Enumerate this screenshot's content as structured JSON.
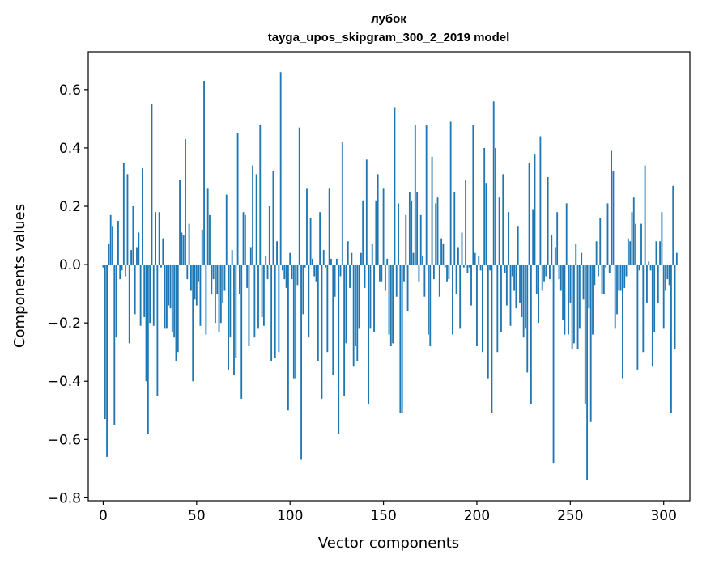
{
  "chart_data": {
    "type": "bar",
    "title": "лубок",
    "subtitle": "tayga_upos_skipgram_300_2_2019 model",
    "xlabel": "Vector components",
    "ylabel": "Components values",
    "xlim": [
      -8,
      314
    ],
    "ylim": [
      -0.81,
      0.73
    ],
    "xticks": [
      0,
      50,
      100,
      150,
      200,
      250,
      300
    ],
    "yticks": [
      -0.8,
      -0.6,
      -0.4,
      -0.2,
      0.0,
      0.2,
      0.4,
      0.6
    ],
    "ytick_labels": [
      "−0.8",
      "−0.6",
      "−0.4",
      "−0.2",
      "0.0",
      "0.2",
      "0.4",
      "0.6"
    ],
    "bar_color": "#1f77b4",
    "values": [
      -0.01,
      -0.53,
      -0.66,
      0.07,
      0.17,
      0.13,
      -0.55,
      -0.25,
      0.15,
      -0.05,
      -0.02,
      0.35,
      -0.04,
      0.31,
      -0.27,
      0.05,
      0.2,
      -0.17,
      0.06,
      0.11,
      -0.21,
      0.33,
      -0.18,
      -0.4,
      -0.58,
      -0.2,
      0.55,
      -0.21,
      0.18,
      -0.45,
      0.18,
      -0.01,
      0.09,
      -0.22,
      -0.22,
      -0.14,
      -0.15,
      -0.23,
      -0.25,
      -0.33,
      -0.3,
      0.29,
      0.11,
      0.1,
      0.43,
      -0.05,
      0.14,
      -0.09,
      -0.4,
      -0.12,
      -0.14,
      -0.06,
      -0.21,
      0.12,
      0.63,
      -0.24,
      0.26,
      0.17,
      -0.1,
      -0.05,
      -0.2,
      -0.1,
      -0.23,
      -0.2,
      -0.13,
      -0.09,
      0.24,
      -0.36,
      -0.25,
      0.05,
      -0.38,
      -0.32,
      0.45,
      -0.1,
      -0.46,
      0.18,
      0.17,
      -0.08,
      -0.28,
      0.06,
      0.34,
      -0.25,
      0.31,
      -0.22,
      0.48,
      -0.18,
      -0.21,
      0.03,
      -0.05,
      0.2,
      -0.33,
      0.32,
      -0.32,
      0.08,
      -0.3,
      0.66,
      -0.02,
      -0.05,
      -0.08,
      -0.5,
      0.04,
      -0.05,
      -0.39,
      -0.39,
      -0.07,
      0.47,
      -0.67,
      -0.17,
      -0.01,
      0.26,
      -0.25,
      0.16,
      0.02,
      -0.04,
      -0.06,
      -0.33,
      0.18,
      -0.46,
      0.05,
      -0.01,
      -0.3,
      0.26,
      0.02,
      -0.38,
      -0.11,
      0.02,
      -0.58,
      -0.04,
      0.42,
      -0.45,
      -0.27,
      0.08,
      -0.08,
      0.04,
      -0.35,
      -0.28,
      -0.33,
      -0.22,
      0.04,
      0.22,
      -0.08,
      0.36,
      -0.48,
      -0.22,
      0.07,
      -0.23,
      0.22,
      0.31,
      -0.06,
      -0.06,
      0.26,
      -0.09,
      0.02,
      -0.24,
      -0.28,
      -0.27,
      0.54,
      -0.11,
      0.21,
      -0.51,
      -0.51,
      -0.06,
      0.17,
      -0.16,
      0.25,
      0.22,
      0.04,
      0.48,
      0.25,
      -0.06,
      0.17,
      0.03,
      -0.11,
      0.48,
      -0.24,
      -0.28,
      0.37,
      -0.05,
      0.21,
      0.23,
      -0.11,
      0.09,
      0.07,
      -0.01,
      -0.06,
      -0.05,
      0.49,
      -0.24,
      0.25,
      -0.1,
      0.06,
      -0.22,
      0.11,
      -0.01,
      0.29,
      -0.03,
      -0.01,
      -0.14,
      0.48,
      0.04,
      -0.28,
      0.03,
      -0.02,
      -0.3,
      0.4,
      0.28,
      -0.39,
      -0.02,
      -0.51,
      0.56,
      0.4,
      -0.3,
      0.23,
      -0.23,
      0.31,
      -0.03,
      -0.14,
      0.18,
      -0.21,
      -0.04,
      -0.09,
      -0.15,
      0.13,
      -0.13,
      -0.18,
      -0.25,
      -0.22,
      -0.37,
      0.35,
      -0.48,
      0.19,
      0.38,
      -0.1,
      -0.2,
      0.44,
      -0.09,
      -0.06,
      -0.04,
      0.3,
      -0.05,
      0.1,
      -0.68,
      0.06,
      0.18,
      -0.05,
      -0.09,
      -0.19,
      -0.24,
      0.21,
      -0.24,
      -0.13,
      -0.29,
      -0.27,
      0.07,
      -0.29,
      -0.22,
      0.04,
      -0.12,
      -0.48,
      -0.74,
      -0.15,
      -0.54,
      -0.24,
      -0.07,
      0.08,
      -0.04,
      0.16,
      -0.1,
      -0.1,
      -0.01,
      0.21,
      -0.03,
      0.39,
      0.32,
      -0.22,
      -0.17,
      -0.09,
      -0.09,
      -0.39,
      -0.08,
      -0.04,
      0.09,
      0.08,
      0.18,
      0.23,
      0.14,
      -0.36,
      -0.02,
      0.14,
      -0.3,
      0.34,
      -0.13,
      0.01,
      -0.02,
      -0.35,
      -0.23,
      0.08,
      -0.13,
      0.08,
      0.18,
      -0.22,
      -0.09,
      -0.05,
      -0.07,
      -0.51,
      0.27,
      -0.29,
      0.04
    ],
    "bars_start_index": 0
  }
}
